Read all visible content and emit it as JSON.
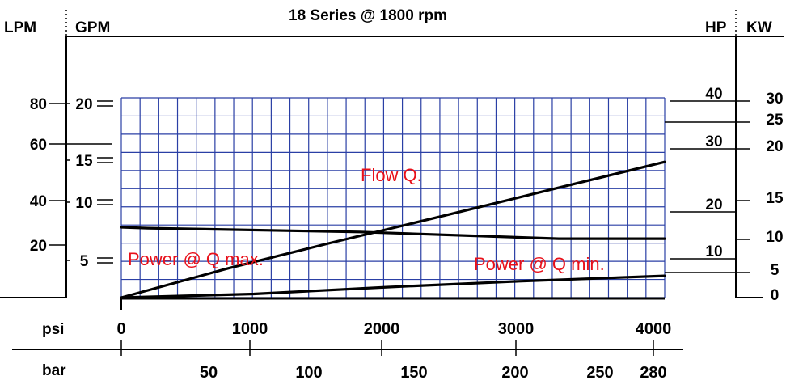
{
  "chart_data": {
    "type": "line",
    "title": "18 Series @ 1800 rpm",
    "axis_titles": {
      "lpm": "LPM",
      "gpm": "GPM",
      "hp": "HP",
      "kw": "KW",
      "psi": "psi",
      "bar": "bar"
    },
    "psi_ticks": [
      "0",
      "1000",
      "2000",
      "3000",
      "4000"
    ],
    "bar_ticks": [
      "50",
      "100",
      "150",
      "200",
      "250",
      "280"
    ],
    "lpm_ticks": [
      "80",
      "60",
      "40",
      "20"
    ],
    "gpm_ticks": [
      "20",
      "15",
      "10",
      "5"
    ],
    "hp_ticks": [
      "40",
      "30",
      "20",
      "10"
    ],
    "kw_ticks": [
      "30",
      "25",
      "20",
      "15",
      "10",
      "5",
      "0"
    ],
    "xlim": [
      0,
      4100
    ],
    "ylim_gpm": [
      0,
      21
    ],
    "ylim_hp": [
      0,
      44
    ],
    "grid": true,
    "series": [
      {
        "name": "Flow Q.",
        "axis": "gpm",
        "x": [
          0,
          200,
          1800,
          3300,
          4100
        ],
        "y": [
          7.4,
          7.3,
          6.9,
          6.2,
          6.2
        ]
      },
      {
        "name": "Power @ Q max.",
        "axis": "hp",
        "x": [
          0,
          800,
          1600,
          2400,
          3200,
          4100
        ],
        "y": [
          0,
          6.4,
          12.2,
          17.8,
          23.5,
          29.9
        ]
      },
      {
        "name": "Power @ Q min.",
        "axis": "hp",
        "x": [
          0,
          1000,
          2000,
          3000,
          4100
        ],
        "y": [
          0,
          0.8,
          2.3,
          3.6,
          4.8
        ]
      }
    ]
  }
}
